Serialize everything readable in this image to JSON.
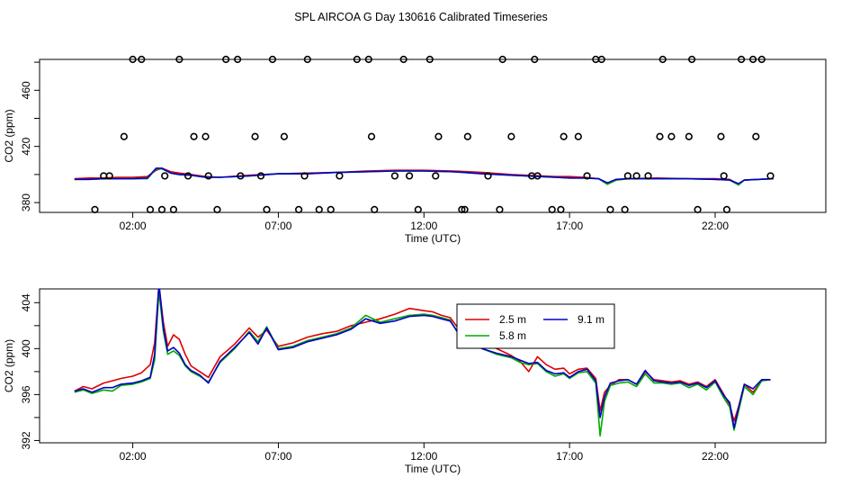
{
  "title": "SPL AIRCOA G  Day 130616  Calibrated Timeseries",
  "chart_data": [
    {
      "type": "line",
      "panel": "top",
      "xlabel": "Time (UTC)",
      "ylabel": "CO2 (ppm)",
      "x_ticks": [
        {
          "v": 2,
          "label": "02:00"
        },
        {
          "v": 7,
          "label": "07:00"
        },
        {
          "v": 12,
          "label": "12:00"
        },
        {
          "v": 17,
          "label": "17:00"
        },
        {
          "v": 22,
          "label": "22:00"
        }
      ],
      "y_ticks": [
        380,
        420,
        460
      ],
      "y_minor_ticks": [
        400,
        440,
        480
      ],
      "xlim": [
        -1.2,
        25.8
      ],
      "ylim": [
        373,
        482
      ],
      "grid": false,
      "series": [
        {
          "color": "#dd0000",
          "x": [
            0.0,
            0.5,
            1.0,
            1.5,
            2.0,
            2.5,
            2.8,
            3.0,
            3.3,
            3.6,
            4.0,
            4.5,
            5.0,
            6.0,
            7.0,
            8.0,
            9.0,
            10.0,
            11.0,
            12.0,
            13.0,
            14.0,
            15.0,
            16.0,
            16.5,
            17.0,
            17.5,
            18.0,
            18.3,
            18.6,
            19.0,
            20.0,
            21.0,
            22.0,
            22.5,
            22.8,
            23.0,
            24.0
          ],
          "y": [
            397,
            397.5,
            397.5,
            398,
            398,
            398.5,
            403,
            404.5,
            402,
            401,
            400,
            398.5,
            398,
            399.5,
            400.5,
            401,
            401.5,
            402.5,
            403,
            403,
            402.5,
            401.5,
            400,
            399,
            398.5,
            398.5,
            398,
            397,
            394,
            396,
            397,
            397.5,
            397,
            397,
            396.5,
            393,
            396,
            397
          ]
        },
        {
          "color": "#00aa00",
          "x": [
            0.0,
            0.5,
            1.0,
            1.5,
            2.0,
            2.5,
            2.8,
            3.0,
            3.3,
            3.6,
            4.0,
            4.5,
            5.0,
            6.0,
            7.0,
            8.0,
            9.0,
            10.0,
            11.0,
            12.0,
            13.0,
            14.0,
            15.0,
            16.0,
            16.5,
            17.0,
            17.5,
            18.0,
            18.3,
            18.6,
            19.0,
            20.0,
            21.0,
            22.0,
            22.5,
            22.8,
            23.0,
            24.0
          ],
          "y": [
            396.5,
            396.5,
            397,
            397,
            397,
            397,
            404,
            404,
            401,
            400,
            399.5,
            398,
            398,
            399,
            400.5,
            400.5,
            401.5,
            402,
            402.5,
            402.5,
            402,
            400.5,
            399.5,
            398.5,
            398,
            397.5,
            397.5,
            397,
            393,
            396,
            397,
            397,
            397,
            396.5,
            396,
            392.5,
            396,
            397
          ]
        },
        {
          "color": "#0000cc",
          "x": [
            0.0,
            0.5,
            1.0,
            1.5,
            2.0,
            2.5,
            2.8,
            3.0,
            3.3,
            3.6,
            4.0,
            4.5,
            5.0,
            6.0,
            7.0,
            8.0,
            9.0,
            10.0,
            11.0,
            12.0,
            13.0,
            14.0,
            15.0,
            16.0,
            16.5,
            17.0,
            17.5,
            18.0,
            18.3,
            18.6,
            19.0,
            20.0,
            21.0,
            22.0,
            22.5,
            22.8,
            23.0,
            24.0
          ],
          "y": [
            396.5,
            396.5,
            397,
            397,
            397,
            397.5,
            404.5,
            404.5,
            401,
            400,
            399.5,
            398,
            398,
            399,
            400.5,
            400.5,
            401.5,
            402,
            402.5,
            402.5,
            402,
            400.5,
            399.5,
            398.5,
            398,
            397.5,
            397.5,
            397,
            394,
            396.5,
            397,
            397,
            397,
            396.5,
            396,
            393.5,
            396,
            397
          ]
        }
      ],
      "points": {
        "x": [
          0.7,
          1.2,
          1.7,
          2.3,
          3.4,
          3.9,
          4.5,
          5.6,
          6.4,
          7.2,
          8.0,
          9.1,
          10.2,
          11.3,
          12.4,
          13.5,
          14.6,
          15.7,
          16.8,
          17.9,
          19.0,
          20.1,
          21.2,
          22.3,
          23.4,
          2.0,
          2.6,
          3.1,
          3.6,
          4.1,
          4.9,
          5.7,
          6.2,
          6.8,
          7.7,
          8.4,
          9.7,
          10.3,
          11.0,
          11.8,
          12.5,
          13.4,
          14.2,
          15.0,
          15.8,
          16.4,
          17.3,
          18.1,
          18.9,
          19.7,
          20.5,
          21.4,
          22.2,
          22.9,
          23.6,
          1.0,
          3.0,
          4.6,
          5.2,
          6.6,
          7.9,
          8.8,
          10.1,
          11.5,
          12.2,
          13.3,
          14.7,
          15.9,
          16.7,
          17.6,
          18.4,
          19.3,
          20.2,
          21.1,
          22.4,
          23.3,
          23.9
        ],
        "y": [
          375,
          399,
          427,
          482,
          375,
          399,
          427,
          482,
          399,
          427,
          482,
          399,
          427,
          482,
          399,
          427,
          375,
          399,
          427,
          482,
          399,
          427,
          482,
          399,
          427,
          482,
          375,
          399,
          482,
          427,
          375,
          399,
          427,
          482,
          375,
          375,
          482,
          375,
          399,
          375,
          427,
          375,
          399,
          427,
          482,
          375,
          427,
          482,
          375,
          399,
          427,
          375,
          427,
          482,
          482,
          399,
          375,
          399,
          482,
          375,
          399,
          375,
          482,
          399,
          482,
          375,
          482,
          399,
          375,
          399,
          375,
          399,
          482,
          427,
          375,
          482,
          399
        ]
      }
    },
    {
      "type": "line",
      "panel": "bottom",
      "xlabel": "Time (UTC)",
      "ylabel": "CO2 (ppm)",
      "x_ticks": [
        {
          "v": 2,
          "label": "02:00"
        },
        {
          "v": 7,
          "label": "07:00"
        },
        {
          "v": 12,
          "label": "12:00"
        },
        {
          "v": 17,
          "label": "17:00"
        },
        {
          "v": 22,
          "label": "22:00"
        }
      ],
      "y_ticks": [
        392,
        396,
        400,
        404
      ],
      "y_minor_ticks": [
        394,
        398,
        402
      ],
      "xlim": [
        -1.2,
        25.8
      ],
      "ylim": [
        391.8,
        405.2
      ],
      "grid": false,
      "legend": {
        "position": "top-right",
        "entries": [
          {
            "name": "2.5 m",
            "color": "#dd0000"
          },
          {
            "name": "5.8 m",
            "color": "#00aa00"
          },
          {
            "name": "9.1 m",
            "color": "#0000cc"
          }
        ]
      },
      "series": [
        {
          "name": "2.5 m",
          "color": "#dd0000",
          "x": [
            0.0,
            0.3,
            0.6,
            1.0,
            1.3,
            1.6,
            2.0,
            2.3,
            2.6,
            2.75,
            2.9,
            3.05,
            3.2,
            3.4,
            3.6,
            3.8,
            4.0,
            4.3,
            4.6,
            5.0,
            5.5,
            6.0,
            6.3,
            6.6,
            7.0,
            7.5,
            8.0,
            8.5,
            9.0,
            9.5,
            10.0,
            10.5,
            11.0,
            11.5,
            12.0,
            12.3,
            12.6,
            12.9,
            13.2,
            13.6,
            14.0,
            14.5,
            15.0,
            15.3,
            15.6,
            15.9,
            16.2,
            16.5,
            16.8,
            17.0,
            17.3,
            17.6,
            17.9,
            18.05,
            18.2,
            18.4,
            18.7,
            19.0,
            19.3,
            19.6,
            19.9,
            20.2,
            20.5,
            20.8,
            21.1,
            21.4,
            21.7,
            22.0,
            22.3,
            22.5,
            22.65,
            22.8,
            23.0,
            23.3,
            23.6,
            23.9
          ],
          "y": [
            396.3,
            396.7,
            396.5,
            397.0,
            397.2,
            397.4,
            397.6,
            397.9,
            398.6,
            400.5,
            405.5,
            402.3,
            400.2,
            401.2,
            400.8,
            399.5,
            398.5,
            398.0,
            397.5,
            399.3,
            400.4,
            401.8,
            401.0,
            401.6,
            400.2,
            400.5,
            401.0,
            401.3,
            401.5,
            402.0,
            402.3,
            402.6,
            403.0,
            403.5,
            403.3,
            403.2,
            402.9,
            402.7,
            401.7,
            401.1,
            400.6,
            400.0,
            399.4,
            398.9,
            398.0,
            399.3,
            398.6,
            398.2,
            398.3,
            397.8,
            398.2,
            398.3,
            397.4,
            394.6,
            396.2,
            396.8,
            397.3,
            397.3,
            396.9,
            398.0,
            397.3,
            397.2,
            397.1,
            397.2,
            396.9,
            397.1,
            396.7,
            397.3,
            396.0,
            395.1,
            393.7,
            394.9,
            396.9,
            396.2,
            397.2,
            397.3
          ]
        },
        {
          "name": "5.8 m",
          "color": "#00aa00",
          "x": [
            0.0,
            0.3,
            0.6,
            1.0,
            1.3,
            1.6,
            2.0,
            2.3,
            2.6,
            2.75,
            2.9,
            3.05,
            3.2,
            3.4,
            3.6,
            3.8,
            4.0,
            4.3,
            4.6,
            5.0,
            5.5,
            6.0,
            6.3,
            6.6,
            7.0,
            7.5,
            8.0,
            8.5,
            9.0,
            9.5,
            10.0,
            10.5,
            11.0,
            11.5,
            12.0,
            12.3,
            12.6,
            12.9,
            13.2,
            13.6,
            14.0,
            14.5,
            15.0,
            15.3,
            15.6,
            15.9,
            16.2,
            16.5,
            16.8,
            17.0,
            17.3,
            17.6,
            17.9,
            18.05,
            18.2,
            18.4,
            18.7,
            19.0,
            19.3,
            19.6,
            19.9,
            20.2,
            20.5,
            20.8,
            21.1,
            21.4,
            21.7,
            22.0,
            22.3,
            22.5,
            22.65,
            22.8,
            23.0,
            23.3,
            23.6,
            23.9
          ],
          "y": [
            396.2,
            396.4,
            396.1,
            396.4,
            396.3,
            396.8,
            396.9,
            397.1,
            397.4,
            399.0,
            405.0,
            401.5,
            399.5,
            399.8,
            399.4,
            398.5,
            398.0,
            397.6,
            397.1,
            398.8,
            400.0,
            401.5,
            400.6,
            401.9,
            400.0,
            400.2,
            400.7,
            401.0,
            401.3,
            401.8,
            402.9,
            402.3,
            402.6,
            402.9,
            403.0,
            402.9,
            402.7,
            402.5,
            401.2,
            400.7,
            400.0,
            399.5,
            399.2,
            398.8,
            398.6,
            398.7,
            398.0,
            397.6,
            397.8,
            397.4,
            397.9,
            398.0,
            397.0,
            392.4,
            395.4,
            396.8,
            397.0,
            397.1,
            396.7,
            397.8,
            397.0,
            397.0,
            396.9,
            397.0,
            396.6,
            396.9,
            396.4,
            397.1,
            395.7,
            394.9,
            392.9,
            394.5,
            396.7,
            396.0,
            397.2,
            397.3
          ]
        },
        {
          "name": "9.1 m",
          "color": "#0000cc",
          "x": [
            0.0,
            0.3,
            0.6,
            1.0,
            1.3,
            1.6,
            2.0,
            2.3,
            2.6,
            2.75,
            2.9,
            3.05,
            3.2,
            3.4,
            3.6,
            3.8,
            4.0,
            4.3,
            4.6,
            5.0,
            5.5,
            6.0,
            6.3,
            6.6,
            7.0,
            7.5,
            8.0,
            8.5,
            9.0,
            9.5,
            10.0,
            10.5,
            11.0,
            11.5,
            12.0,
            12.3,
            12.6,
            12.9,
            13.2,
            13.6,
            14.0,
            14.5,
            15.0,
            15.3,
            15.6,
            15.9,
            16.2,
            16.5,
            16.8,
            17.0,
            17.3,
            17.6,
            17.9,
            18.05,
            18.2,
            18.4,
            18.7,
            19.0,
            19.3,
            19.6,
            19.9,
            20.2,
            20.5,
            20.8,
            21.1,
            21.4,
            21.7,
            22.0,
            22.3,
            22.5,
            22.65,
            22.8,
            23.0,
            23.3,
            23.6,
            23.9
          ],
          "y": [
            396.3,
            396.5,
            396.2,
            396.6,
            396.6,
            396.9,
            397.0,
            397.2,
            397.5,
            399.5,
            405.7,
            401.8,
            399.8,
            400.1,
            399.6,
            398.6,
            398.1,
            397.7,
            397.0,
            398.9,
            400.1,
            401.4,
            400.4,
            401.8,
            399.9,
            400.1,
            400.6,
            400.9,
            401.2,
            401.7,
            402.6,
            402.2,
            402.4,
            402.8,
            402.9,
            402.8,
            402.6,
            402.4,
            401.3,
            400.6,
            400.0,
            399.6,
            399.3,
            399.0,
            398.7,
            398.8,
            398.1,
            397.8,
            397.9,
            397.5,
            398.0,
            398.2,
            397.2,
            394.0,
            395.8,
            397.0,
            397.2,
            397.3,
            396.9,
            398.1,
            397.2,
            397.1,
            397.0,
            397.1,
            396.8,
            397.0,
            396.6,
            397.2,
            395.9,
            395.3,
            393.1,
            394.8,
            396.9,
            396.5,
            397.3,
            397.3
          ]
        }
      ]
    }
  ]
}
